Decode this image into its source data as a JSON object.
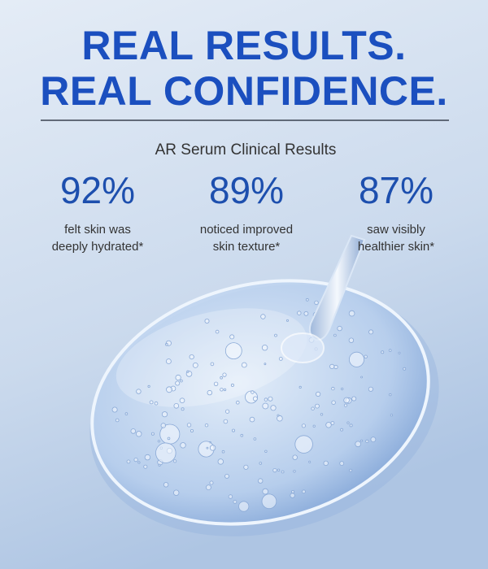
{
  "headline": [
    "REAL RESULTS.",
    "REAL CONFIDENCE."
  ],
  "subtitle": "AR Serum Clinical Results",
  "stats": [
    {
      "value": "92%",
      "lines": [
        "felt skin was",
        "deeply hydrated*"
      ]
    },
    {
      "value": "89%",
      "lines": [
        "noticed improved",
        "skin texture*"
      ]
    },
    {
      "value": "87%",
      "lines": [
        "saw visibly",
        "healthier skin*"
      ]
    }
  ]
}
